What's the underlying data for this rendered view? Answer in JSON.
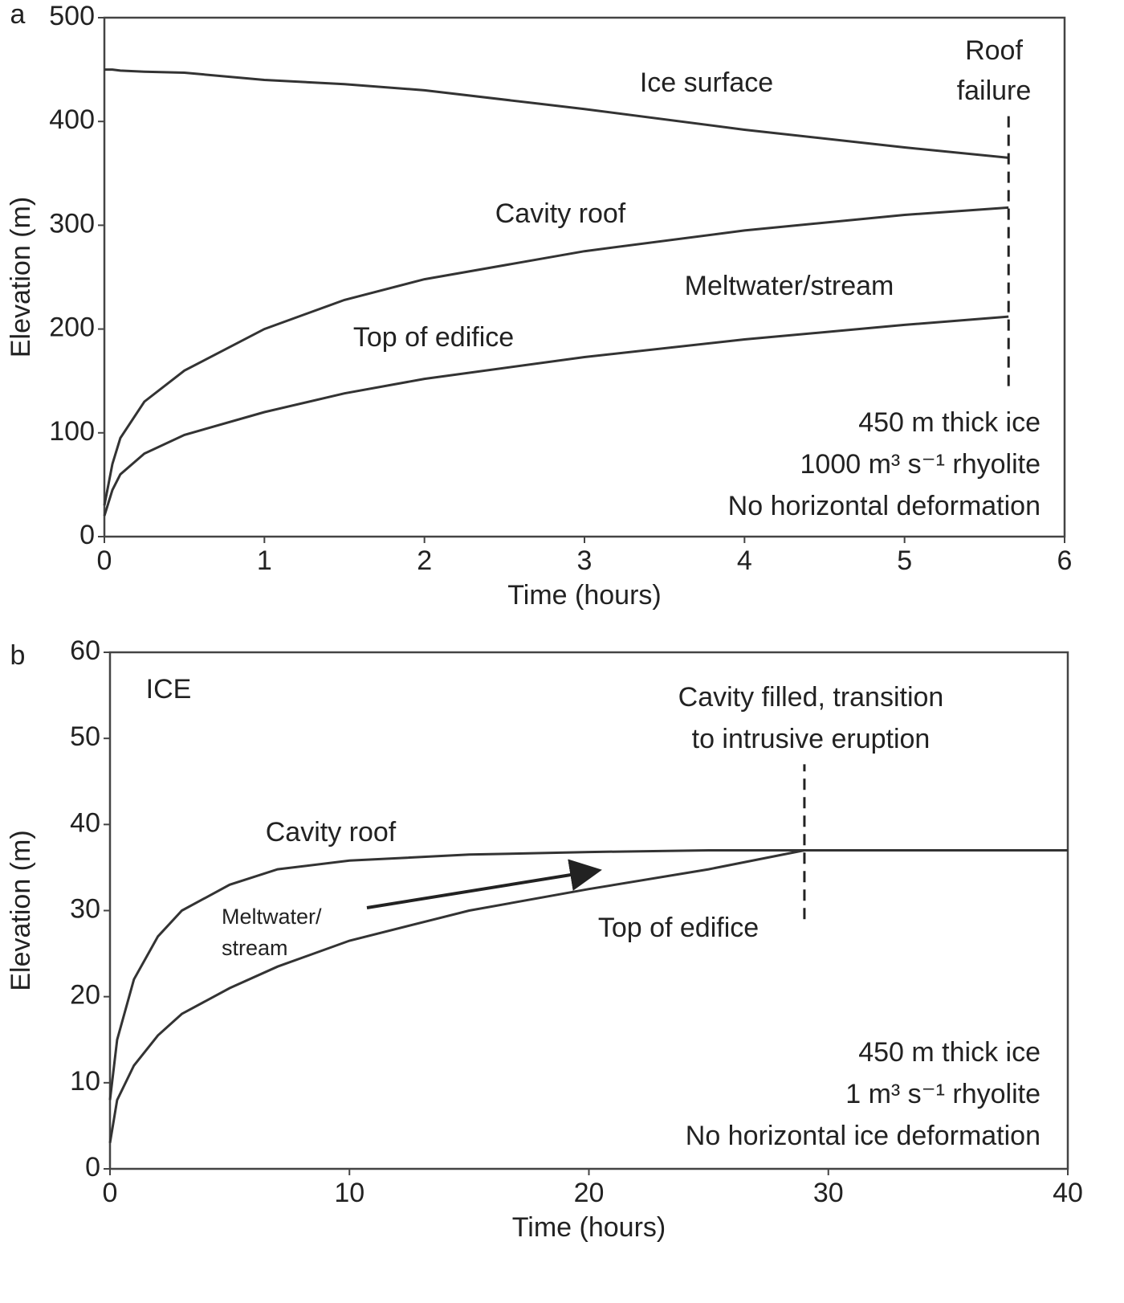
{
  "chart_data": [
    {
      "type": "line",
      "panel": "a",
      "xlabel": "Time (hours)",
      "ylabel": "Elevation (m)",
      "xlim": [
        0,
        6
      ],
      "xticks": [
        0,
        1,
        2,
        3,
        4,
        5,
        6
      ],
      "ylim": [
        0,
        500
      ],
      "yticks": [
        0,
        100,
        200,
        300,
        400,
        500
      ],
      "x": [
        0,
        0.05,
        0.1,
        0.25,
        0.5,
        1,
        1.5,
        2,
        3,
        4,
        5,
        5.65
      ],
      "series": [
        {
          "name": "Ice surface",
          "color": "#333333",
          "values": [
            450,
            450,
            449,
            448,
            447,
            440,
            436,
            430,
            412,
            392,
            375,
            365
          ]
        },
        {
          "name": "Cavity roof",
          "color": "#333333",
          "values": [
            30,
            70,
            95,
            130,
            160,
            200,
            228,
            248,
            275,
            295,
            310,
            317
          ]
        },
        {
          "name": "Top of edifice",
          "color": "#333333",
          "values": [
            20,
            45,
            60,
            80,
            98,
            120,
            138,
            152,
            173,
            190,
            204,
            212
          ]
        }
      ],
      "vlines": [
        {
          "x": 5.65,
          "y0": 145,
          "y1": 410
        }
      ],
      "annotations": [
        "Roof",
        "failure",
        "Meltwater/stream",
        "450 m thick ice",
        "1000 m³ s⁻¹ rhyolite",
        "No horizontal deformation"
      ]
    },
    {
      "type": "line",
      "panel": "b",
      "xlabel": "Time (hours)",
      "ylabel": "Elevation (m)",
      "xlim": [
        0,
        40
      ],
      "xticks": [
        0,
        10,
        20,
        30,
        40
      ],
      "ylim": [
        0,
        60
      ],
      "yticks": [
        0,
        10,
        20,
        30,
        40,
        50,
        60
      ],
      "x": [
        0,
        0.3,
        1,
        2,
        3,
        5,
        7,
        10,
        15,
        20,
        25,
        29,
        40
      ],
      "series": [
        {
          "name": "Cavity roof",
          "color": "#333333",
          "values": [
            8,
            15,
            22,
            27,
            30,
            33,
            34.8,
            35.8,
            36.5,
            36.8,
            37,
            37,
            37
          ]
        },
        {
          "name": "Top of edifice",
          "color": "#333333",
          "values": [
            3,
            8,
            12,
            15.5,
            18,
            21,
            23.5,
            26.5,
            30,
            32.5,
            34.8,
            37,
            null
          ]
        }
      ],
      "vlines": [
        {
          "x": 29,
          "y0": 29,
          "y1": 47
        }
      ],
      "annotations": [
        "ICE",
        "Cavity filled, transition",
        "to intrusive eruption",
        "Meltwater/",
        "stream",
        "450 m thick ice",
        "1 m³ s⁻¹ rhyolite",
        "No horizontal ice deformation"
      ]
    }
  ]
}
